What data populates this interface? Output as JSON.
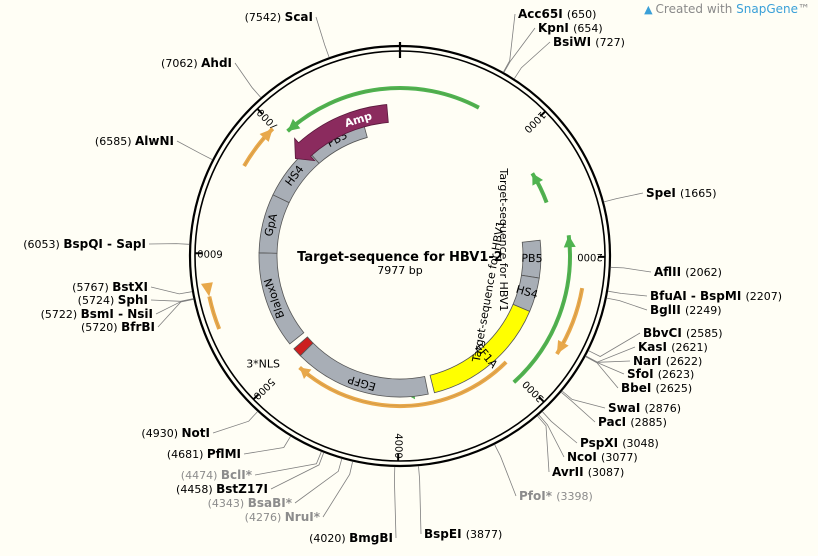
{
  "watermark": {
    "prefix": "Created with ",
    "brand": "SnapGene",
    "suffix": "™",
    "icon": "snapgene-logo-icon"
  },
  "plasmid": {
    "name": "Target-sequence for HBV1-2",
    "length": 7977,
    "length_label": "7977 bp"
  },
  "colors": {
    "backbone": "#000000",
    "feature_gray": "#a8aeb6",
    "feature_yellow": "#ffff00",
    "amp": "#8b2b5e",
    "orf_orange": "#e8a84a",
    "orf_green": "#4fb34f",
    "nls_red": "#cc1f1f",
    "label_line": "#7f7f7f",
    "dim_label": "#8c8c8c",
    "background": "#fffef5"
  },
  "ticks": [
    {
      "pos": 1000,
      "label": "1000"
    },
    {
      "pos": 2000,
      "label": "2000"
    },
    {
      "pos": 3000,
      "label": "3000"
    },
    {
      "pos": 4000,
      "label": "4000"
    },
    {
      "pos": 5000,
      "label": "5000"
    },
    {
      "pos": 6000,
      "label": "6000"
    },
    {
      "pos": 7000,
      "label": "7000"
    }
  ],
  "sites": [
    {
      "name": "ScaI",
      "pos": "(7542)",
      "side": "left",
      "dim": false,
      "bp": 7542
    },
    {
      "name": "AhdI",
      "pos": "(7062)",
      "side": "left",
      "dim": false,
      "bp": 7062
    },
    {
      "name": "AlwNI",
      "pos": "(6585)",
      "side": "left",
      "dim": false,
      "bp": 6585
    },
    {
      "name": "BspQI - SapI",
      "pos": "(6053)",
      "side": "left",
      "dim": false,
      "bp": 6053
    },
    {
      "name": "BstXI",
      "pos": "(5767)",
      "side": "left",
      "dim": false,
      "bp": 5767
    },
    {
      "name": "SphI",
      "pos": "(5724)",
      "side": "left",
      "dim": false,
      "bp": 5724
    },
    {
      "name": "BsmI - NsiI",
      "pos": "(5722)",
      "side": "left",
      "dim": false,
      "bp": 5722
    },
    {
      "name": "BfrBI",
      "pos": "(5720)",
      "side": "left",
      "dim": false,
      "bp": 5720
    },
    {
      "name": "NotI",
      "pos": "(4930)",
      "side": "left",
      "dim": false,
      "bp": 4930
    },
    {
      "name": "PflMI",
      "pos": "(4681)",
      "side": "left",
      "dim": false,
      "bp": 4681
    },
    {
      "name": "BclI*",
      "pos": "(4474)",
      "side": "left",
      "dim": true,
      "bp": 4474
    },
    {
      "name": "BstZ17I",
      "pos": "(4458)",
      "side": "left",
      "dim": false,
      "bp": 4458
    },
    {
      "name": "BsaBI*",
      "pos": "(4343)",
      "side": "left",
      "dim": true,
      "bp": 4343
    },
    {
      "name": "NruI*",
      "pos": "(4276)",
      "side": "left",
      "dim": true,
      "bp": 4276
    },
    {
      "name": "BmgBI",
      "pos": "(4020)",
      "side": "left",
      "dim": false,
      "bp": 4020
    },
    {
      "name": "Acc65I",
      "pos": "(650)",
      "side": "right",
      "dim": false,
      "bp": 650
    },
    {
      "name": "KpnI",
      "pos": "(654)",
      "side": "right",
      "dim": false,
      "bp": 654
    },
    {
      "name": "BsiWI",
      "pos": "(727)",
      "side": "right",
      "dim": false,
      "bp": 727
    },
    {
      "name": "SpeI",
      "pos": "(1665)",
      "side": "right",
      "dim": false,
      "bp": 1665
    },
    {
      "name": "AflII",
      "pos": "(2062)",
      "side": "right",
      "dim": false,
      "bp": 2062
    },
    {
      "name": "BfuAI - BspMI",
      "pos": "(2207)",
      "side": "right",
      "dim": false,
      "bp": 2207
    },
    {
      "name": "BglII",
      "pos": "(2249)",
      "side": "right",
      "dim": false,
      "bp": 2249
    },
    {
      "name": "BbvCI",
      "pos": "(2585)",
      "side": "right",
      "dim": false,
      "bp": 2585
    },
    {
      "name": "KasI",
      "pos": "(2621)",
      "side": "right",
      "dim": false,
      "bp": 2621
    },
    {
      "name": "NarI",
      "pos": "(2622)",
      "side": "right",
      "dim": false,
      "bp": 2622
    },
    {
      "name": "SfoI",
      "pos": "(2623)",
      "side": "right",
      "dim": false,
      "bp": 2623
    },
    {
      "name": "BbeI",
      "pos": "(2625)",
      "side": "right",
      "dim": false,
      "bp": 2625
    },
    {
      "name": "SwaI",
      "pos": "(2876)",
      "side": "right",
      "dim": false,
      "bp": 2876
    },
    {
      "name": "PacI",
      "pos": "(2885)",
      "side": "right",
      "dim": false,
      "bp": 2885
    },
    {
      "name": "PspXI",
      "pos": "(3048)",
      "side": "right",
      "dim": false,
      "bp": 3048
    },
    {
      "name": "NcoI",
      "pos": "(3077)",
      "side": "right",
      "dim": false,
      "bp": 3077
    },
    {
      "name": "AvrII",
      "pos": "(3087)",
      "side": "right",
      "dim": false,
      "bp": 3087
    },
    {
      "name": "PfoI*",
      "pos": "(3398)",
      "side": "right",
      "dim": true,
      "bp": 3398
    },
    {
      "name": "BspEI",
      "pos": "(3877)",
      "side": "right",
      "dim": false,
      "bp": 3877
    }
  ],
  "features": [
    {
      "label": "Amp",
      "color": "amp",
      "start": 7760,
      "end": 6930,
      "strand": -1
    },
    {
      "label": "PB5",
      "color": "feature_gray",
      "start": 6.5,
      "end": 7.7,
      "strand": 0
    },
    {
      "label": "HS4",
      "color": "feature_gray",
      "start": 7.7,
      "end": 8.8,
      "strand": 0
    },
    {
      "label": "EF1A",
      "color": "feature_yellow",
      "start": 8.8,
      "end": 12.9,
      "strand": 1
    },
    {
      "label": "EGFP",
      "color": "feature_gray",
      "start": 13.1,
      "end": 17.5,
      "strand": 1
    },
    {
      "label": "3*NLS",
      "color": "nls_red",
      "start": 17.5,
      "end": 17.8,
      "strand": 1
    },
    {
      "label": "BlaloxN",
      "color": "feature_gray",
      "start": 18.0,
      "end": 21.1,
      "strand": 0
    },
    {
      "label": "GpA",
      "color": "feature_gray",
      "start": 21.1,
      "end": 23.0,
      "strand": 0
    },
    {
      "label": "HS4",
      "color": "feature_gray",
      "start": 23.0,
      "end": 24.8,
      "strand": 0
    },
    {
      "label": "PB3",
      "color": "feature_gray",
      "start": 24.8,
      "end": 26.8,
      "strand": 0
    }
  ],
  "insert_label": "Target-sequence for HBV1",
  "insert_label2": "Target-sequence for HBV1"
}
